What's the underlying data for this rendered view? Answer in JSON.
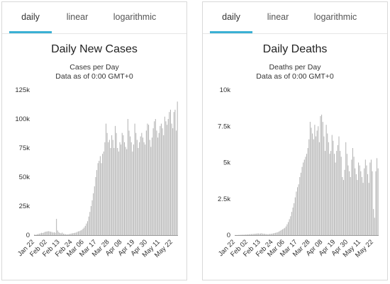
{
  "chart_data": [
    {
      "type": "bar",
      "tabs": [
        "daily",
        "linear",
        "logarithmic"
      ],
      "active_tab": "daily",
      "title": "Daily New Cases",
      "subtitle": "Cases per Day",
      "note": "Data as of 0:00 GMT+0",
      "ylim": [
        0,
        125000
      ],
      "yticks": [
        0,
        25000,
        50000,
        75000,
        100000,
        125000
      ],
      "ytick_labels": [
        "0",
        "25k",
        "50k",
        "75k",
        "100k",
        "125k"
      ],
      "xtick_labels": [
        "Jan 22",
        "Feb 02",
        "Feb 13",
        "Feb 24",
        "Mar 06",
        "Mar 17",
        "Mar 28",
        "Apr 08",
        "Apr 19",
        "Apr 30",
        "May 11",
        "May 22"
      ],
      "xtick_index": [
        0,
        11,
        22,
        33,
        43,
        54,
        65,
        76,
        87,
        98,
        109,
        120
      ],
      "grid": false,
      "color": "#b3b3b3",
      "values": [
        600,
        200,
        700,
        900,
        1200,
        1500,
        2000,
        1800,
        2200,
        2800,
        3000,
        3200,
        3400,
        3200,
        2900,
        2700,
        2200,
        2500,
        2000,
        14000,
        4000,
        2500,
        1800,
        1500,
        2200,
        1200,
        1000,
        800,
        600,
        700,
        900,
        1100,
        1400,
        1600,
        1800,
        2000,
        2200,
        2800,
        3200,
        3500,
        4000,
        4500,
        5500,
        6500,
        8000,
        10000,
        12000,
        16000,
        20000,
        25000,
        30000,
        36000,
        42000,
        50000,
        56000,
        62000,
        64000,
        68000,
        62000,
        70000,
        72000,
        80000,
        96000,
        88000,
        80000,
        82000,
        75000,
        86000,
        82000,
        75000,
        94000,
        88000,
        75000,
        72000,
        80000,
        78000,
        88000,
        86000,
        80000,
        76000,
        74000,
        100000,
        90000,
        85000,
        80000,
        72000,
        78000,
        96000,
        88000,
        82000,
        75000,
        80000,
        85000,
        88000,
        84000,
        80000,
        78000,
        90000,
        96000,
        95000,
        82000,
        76000,
        84000,
        92000,
        98000,
        100000,
        90000,
        84000,
        88000,
        94000,
        96000,
        92000,
        86000,
        102000,
        98000,
        95000,
        100000,
        106000,
        108000,
        96000,
        92000,
        106000,
        108000,
        90000,
        115000
      ]
    },
    {
      "type": "bar",
      "tabs": [
        "daily",
        "linear",
        "logarithmic"
      ],
      "active_tab": "daily",
      "title": "Daily Deaths",
      "subtitle": "Deaths per Day",
      "note": "Data as of 0:00 GMT+0",
      "ylim": [
        0,
        10000
      ],
      "yticks": [
        0,
        2500,
        5000,
        7500,
        10000
      ],
      "ytick_labels": [
        "0",
        "2.5k",
        "5k",
        "7.5k",
        "10k"
      ],
      "xtick_labels": [
        "Jan 22",
        "Feb 02",
        "Feb 13",
        "Feb 24",
        "Mar 06",
        "Mar 17",
        "Mar 28",
        "Apr 08",
        "Apr 19",
        "Apr 30",
        "May 11",
        "May 22"
      ],
      "xtick_index": [
        0,
        11,
        22,
        33,
        43,
        54,
        65,
        76,
        87,
        98,
        109,
        120
      ],
      "grid": false,
      "color": "#b3b3b3",
      "values": [
        10,
        5,
        10,
        15,
        20,
        25,
        30,
        30,
        35,
        40,
        45,
        50,
        60,
        65,
        70,
        75,
        80,
        90,
        100,
        110,
        120,
        100,
        110,
        130,
        90,
        100,
        80,
        70,
        60,
        70,
        80,
        90,
        100,
        120,
        140,
        160,
        180,
        200,
        250,
        300,
        350,
        400,
        450,
        500,
        600,
        750,
        900,
        1100,
        1300,
        1600,
        1900,
        2200,
        2600,
        3000,
        3300,
        3500,
        4000,
        4300,
        4700,
        5000,
        5200,
        5400,
        5600,
        6000,
        6600,
        7800,
        7400,
        7000,
        6600,
        7600,
        6800,
        7200,
        7500,
        6400,
        8200,
        8300,
        7800,
        6800,
        5800,
        7600,
        7000,
        6400,
        5600,
        5800,
        6900,
        6500,
        5600,
        5000,
        5800,
        6200,
        6800,
        5800,
        5400,
        4000,
        3800,
        4500,
        6400,
        5600,
        4800,
        4400,
        4000,
        5200,
        6000,
        5400,
        4600,
        4200,
        3800,
        5000,
        4800,
        4400,
        4000,
        3600,
        4600,
        5200,
        4800,
        4200,
        3600,
        5000,
        5200,
        4400,
        1800,
        1200,
        4400,
        5300,
        4600
      ]
    }
  ]
}
